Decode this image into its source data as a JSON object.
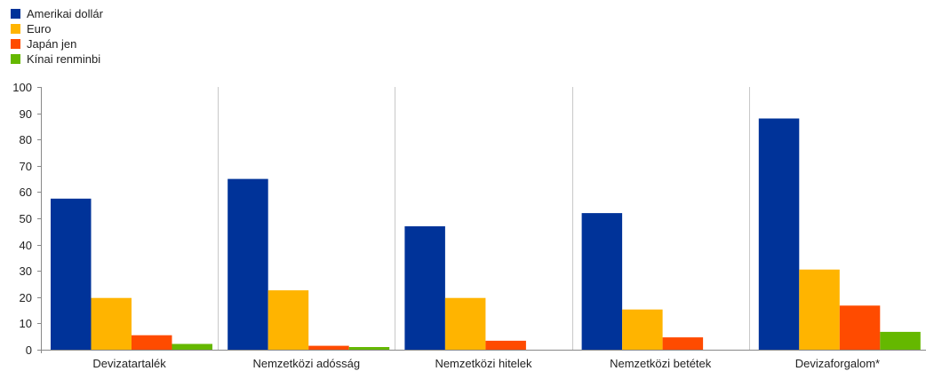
{
  "chart_data": {
    "type": "bar",
    "categories": [
      "Devizatartalék",
      "Nemzetközi adósság",
      "Nemzetközi hitelek",
      "Nemzetközi betétek",
      "Devizaforgalom*"
    ],
    "series": [
      {
        "name": "Amerikai dollár",
        "color": "#003399",
        "values": [
          57.5,
          65,
          47,
          52,
          88
        ]
      },
      {
        "name": "Euro",
        "color": "#FFB400",
        "values": [
          19.7,
          22.6,
          19.7,
          15.3,
          30.5
        ]
      },
      {
        "name": "Japán jen",
        "color": "#FF4B00",
        "values": [
          5.5,
          1.5,
          3.4,
          4.7,
          16.8
        ]
      },
      {
        "name": "Kínai renminbi",
        "color": "#65B800",
        "values": [
          2.2,
          1.0,
          0,
          0,
          6.8
        ]
      }
    ],
    "yticks": [
      0,
      10,
      20,
      30,
      40,
      50,
      60,
      70,
      80,
      90,
      100
    ],
    "ylim": [
      0,
      100
    ],
    "grid": "vertical-separators",
    "legend": "top-left"
  }
}
